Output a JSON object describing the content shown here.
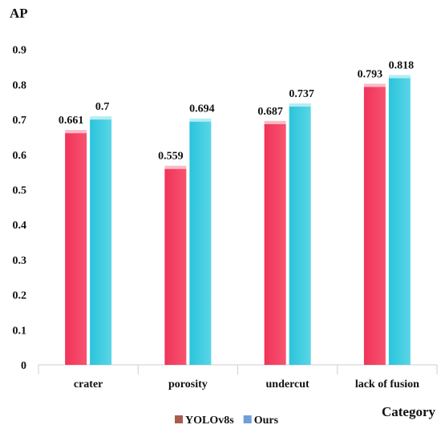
{
  "chart_data": {
    "type": "bar",
    "title": "",
    "ylabel": "AP",
    "xlabel": "Category",
    "categories": [
      "crater",
      "porosity",
      "undercut",
      "lack of fusion"
    ],
    "series": [
      {
        "name": "YOLOv8s",
        "values": [
          0.661,
          0.559,
          0.687,
          0.793
        ],
        "value_labels": [
          "0.661",
          "0.559",
          "0.687",
          "0.793"
        ],
        "color": "#f23a5e",
        "legend_color": "#a85c50"
      },
      {
        "name": "Ours",
        "values": [
          0.7,
          0.694,
          0.737,
          0.818
        ],
        "value_labels": [
          "0.7",
          "0.694",
          "0.737",
          "0.818"
        ],
        "color": "#2ec8dc",
        "legend_color": "#6f9fd8"
      }
    ],
    "ylim": [
      0,
      1
    ],
    "yticks": [
      "0",
      "0.1",
      "0.2",
      "0.3",
      "0.4",
      "0.5",
      "0.6",
      "0.7",
      "0.8",
      "0.9"
    ],
    "grid": false,
    "legend_position": "bottom"
  }
}
